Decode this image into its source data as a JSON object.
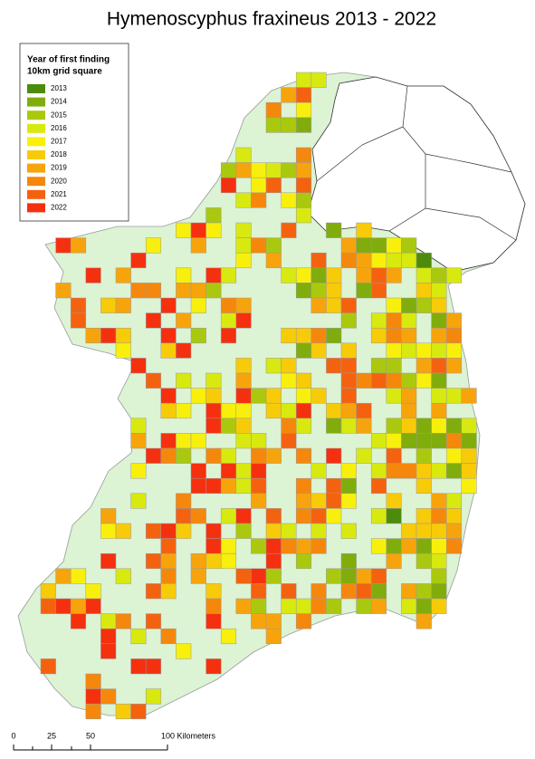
{
  "title": "Hymenoscyphus fraxineus 2013 - 2022",
  "legend": {
    "title": [
      "Year of first finding",
      "10km grid square"
    ],
    "items": [
      {
        "label": "2013",
        "color": "#4c8c0a"
      },
      {
        "label": "2014",
        "color": "#80ad0c"
      },
      {
        "label": "2015",
        "color": "#aac90e"
      },
      {
        "label": "2016",
        "color": "#d8e90f"
      },
      {
        "label": "2017",
        "color": "#f8f00c"
      },
      {
        "label": "2018",
        "color": "#f8cb08"
      },
      {
        "label": "2019",
        "color": "#f7a40c"
      },
      {
        "label": "2020",
        "color": "#f5880c"
      },
      {
        "label": "2021",
        "color": "#f5620f"
      },
      {
        "label": "2022",
        "color": "#f5300f"
      }
    ]
  },
  "scale_bar": {
    "labels": [
      "0",
      "25",
      "50",
      "100 Kilometers"
    ]
  }
}
